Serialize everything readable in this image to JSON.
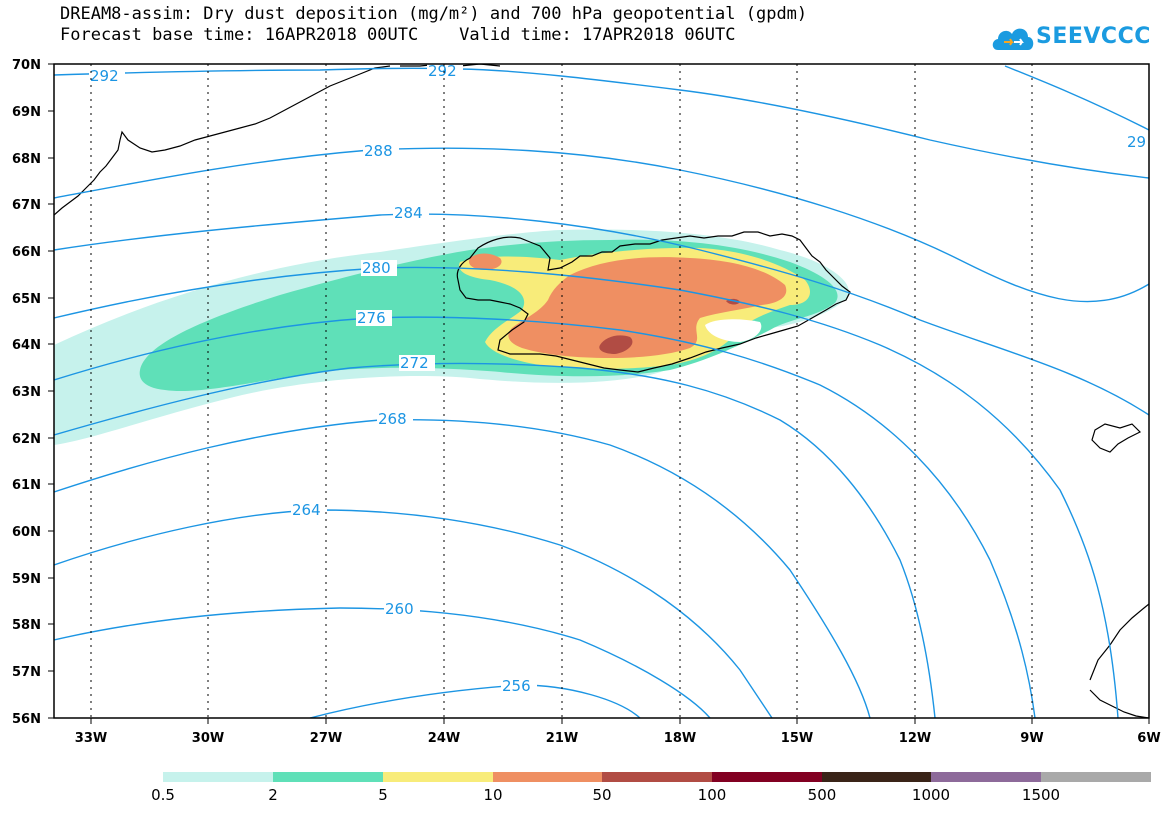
{
  "header": {
    "title": "DREAM8-assim: Dry dust deposition (mg/m²) and 700 hPa geopotential (gpdm)",
    "subtitle": "Forecast base time: 16APR2018 00UTC    Valid time: 17APR2018 06UTC"
  },
  "logo": {
    "text": "SEEVCCC",
    "icon": "cloud-icon",
    "color": "#1b9be0"
  },
  "map": {
    "lat_labels": [
      "70N",
      "69N",
      "68N",
      "67N",
      "66N",
      "65N",
      "64N",
      "63N",
      "62N",
      "61N",
      "60N",
      "59N",
      "58N",
      "57N",
      "56N"
    ],
    "lon_labels": [
      "33W",
      "30W",
      "27W",
      "24W",
      "21W",
      "18W",
      "15W",
      "12W",
      "9W",
      "6W"
    ],
    "contour_color": "#1c95e3",
    "contour_labels": [
      "292",
      "292",
      "29",
      "288",
      "284",
      "280",
      "276",
      "272",
      "268",
      "264",
      "260",
      "256"
    ]
  },
  "legend": {
    "colors": [
      "#c6f2ec",
      "#5fe0b8",
      "#f8ec7a",
      "#ef8f62",
      "#b14c44",
      "#820022",
      "#3a2418",
      "#8d6a9a",
      "#a9a9a9"
    ],
    "labels": [
      "0.5",
      "2",
      "5",
      "10",
      "50",
      "100",
      "500",
      "1000",
      "1500"
    ]
  }
}
